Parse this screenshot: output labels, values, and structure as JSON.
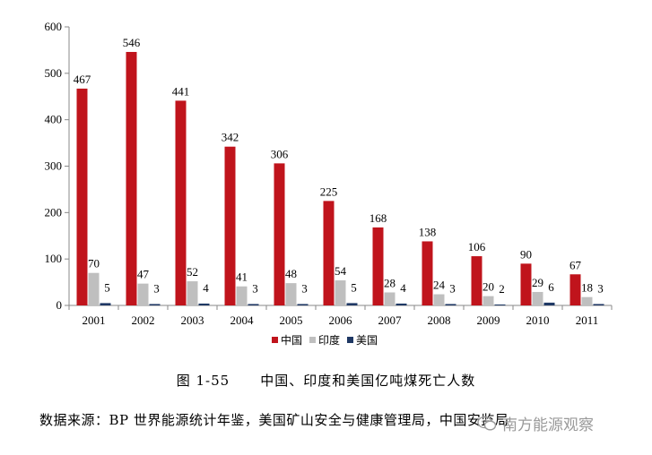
{
  "chart_data": {
    "type": "bar",
    "categories": [
      "2001",
      "2002",
      "2003",
      "2004",
      "2005",
      "2006",
      "2007",
      "2008",
      "2009",
      "2010",
      "2011"
    ],
    "series": [
      {
        "name": "中国",
        "color": "#c0141c",
        "values": [
          467,
          546,
          441,
          342,
          306,
          225,
          168,
          138,
          106,
          90,
          67
        ]
      },
      {
        "name": "印度",
        "color": "#bfbfbf",
        "values": [
          70,
          47,
          52,
          41,
          48,
          54,
          28,
          24,
          20,
          29,
          18
        ]
      },
      {
        "name": "美国",
        "color": "#1f3864",
        "values": [
          5,
          3,
          4,
          3,
          3,
          5,
          4,
          3,
          2,
          6,
          3
        ]
      }
    ],
    "ylim": [
      0,
      600
    ],
    "yticks": [
      "0",
      "100",
      "200",
      "300",
      "400",
      "500",
      "600"
    ],
    "legend_position": "bottom",
    "grid": false
  },
  "caption": {
    "number": "图 1-55",
    "title": "中国、印度和美国亿吨煤死亡人数"
  },
  "source": "数据来源：BP 世界能源统计年鉴，美国矿山安全与健康管理局，中国安监局",
  "watermark": {
    "icon": "wechat-icon",
    "text": "南方能源观察"
  }
}
